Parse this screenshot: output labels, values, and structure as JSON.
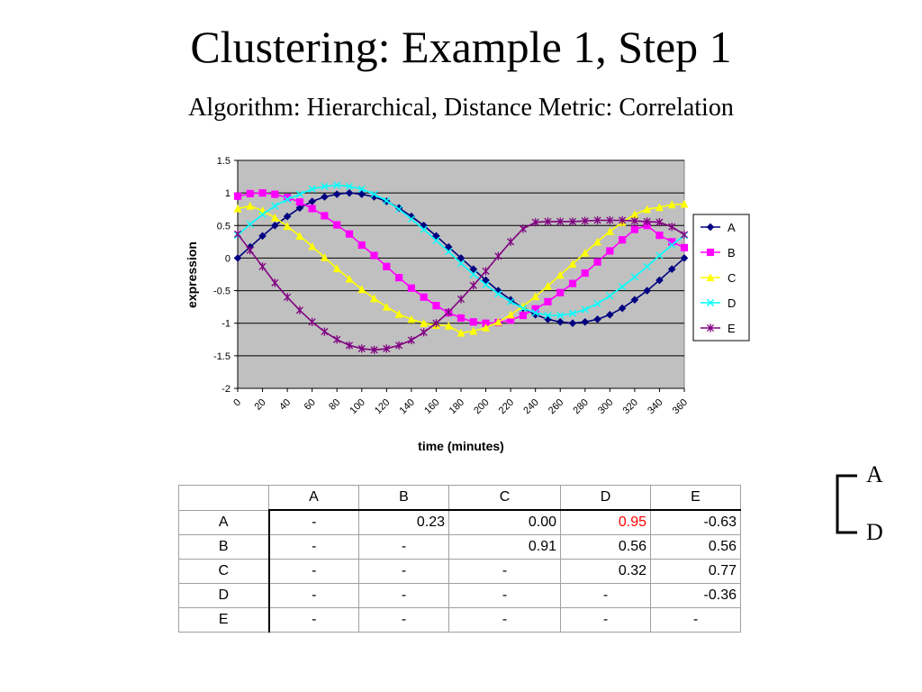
{
  "slide": {
    "title": "Clustering: Example 1, Step 1",
    "subtitle": "Algorithm: Hierarchical, Distance Metric: Correlation"
  },
  "chart_data": {
    "type": "line",
    "title": "",
    "xlabel": "time (minutes)",
    "ylabel": "expression",
    "xlim": [
      0,
      360
    ],
    "ylim": [
      -2,
      1.5
    ],
    "yticks": [
      1.5,
      1,
      0.5,
      0,
      -0.5,
      -1,
      -1.5,
      -2
    ],
    "xticks": [
      0,
      20,
      40,
      60,
      80,
      100,
      120,
      140,
      160,
      180,
      200,
      220,
      240,
      260,
      280,
      300,
      320,
      340,
      360
    ],
    "grid": "horizontal",
    "plot_background": "#c0c0c0",
    "legend_position": "right",
    "x": [
      0,
      10,
      20,
      30,
      40,
      50,
      60,
      70,
      80,
      90,
      100,
      110,
      120,
      130,
      140,
      150,
      160,
      170,
      180,
      190,
      200,
      210,
      220,
      230,
      240,
      250,
      260,
      270,
      280,
      290,
      300,
      310,
      320,
      330,
      340,
      350,
      360
    ],
    "series": [
      {
        "name": "A",
        "color": "#000080",
        "marker": "diamond",
        "values": [
          0.0,
          0.17,
          0.34,
          0.5,
          0.64,
          0.77,
          0.87,
          0.94,
          0.98,
          1.0,
          0.98,
          0.94,
          0.87,
          0.77,
          0.64,
          0.5,
          0.34,
          0.17,
          0.0,
          -0.17,
          -0.34,
          -0.5,
          -0.64,
          -0.77,
          -0.87,
          -0.94,
          -0.98,
          -1.0,
          -0.98,
          -0.94,
          -0.87,
          -0.77,
          -0.64,
          -0.5,
          -0.34,
          -0.17,
          0.0
        ]
      },
      {
        "name": "B",
        "color": "#ff00ff",
        "marker": "square",
        "values": [
          0.95,
          0.99,
          1.0,
          0.98,
          0.93,
          0.86,
          0.76,
          0.65,
          0.51,
          0.37,
          0.2,
          0.04,
          -0.13,
          -0.3,
          -0.46,
          -0.6,
          -0.73,
          -0.84,
          -0.92,
          -0.98,
          -1.0,
          -0.99,
          -0.95,
          -0.88,
          -0.78,
          -0.67,
          -0.53,
          -0.39,
          -0.23,
          -0.06,
          0.11,
          0.28,
          0.44,
          0.5,
          0.35,
          0.25,
          0.16
        ]
      },
      {
        "name": "C",
        "color": "#ffff00",
        "marker": "triangle",
        "values": [
          0.76,
          0.8,
          0.73,
          0.62,
          0.49,
          0.34,
          0.18,
          0.01,
          -0.16,
          -0.32,
          -0.48,
          -0.62,
          -0.75,
          -0.86,
          -0.94,
          -1.0,
          -1.03,
          -1.04,
          -1.15,
          -1.12,
          -1.07,
          -0.98,
          -0.87,
          -0.74,
          -0.59,
          -0.43,
          -0.26,
          -0.09,
          0.08,
          0.25,
          0.41,
          0.55,
          0.67,
          0.75,
          0.78,
          0.82,
          0.83
        ]
      },
      {
        "name": "D",
        "color": "#00ffff",
        "marker": "x",
        "values": [
          0.35,
          0.52,
          0.67,
          0.8,
          0.9,
          0.98,
          1.06,
          1.1,
          1.12,
          1.1,
          1.06,
          0.98,
          0.88,
          0.75,
          0.6,
          0.44,
          0.27,
          0.1,
          -0.08,
          -0.25,
          -0.41,
          -0.55,
          -0.67,
          -0.77,
          -0.84,
          -0.88,
          -0.88,
          -0.85,
          -0.79,
          -0.7,
          -0.58,
          -0.44,
          -0.29,
          -0.13,
          0.04,
          0.2,
          0.35
        ]
      },
      {
        "name": "E",
        "color": "#800080",
        "marker": "star",
        "values": [
          0.37,
          0.12,
          -0.13,
          -0.38,
          -0.6,
          -0.8,
          -0.98,
          -1.13,
          -1.25,
          -1.34,
          -1.39,
          -1.41,
          -1.39,
          -1.34,
          -1.26,
          -1.14,
          -1.0,
          -0.83,
          -0.63,
          -0.42,
          -0.2,
          0.03,
          0.25,
          0.45,
          0.55,
          0.56,
          0.56,
          0.56,
          0.57,
          0.58,
          0.58,
          0.58,
          0.57,
          0.56,
          0.55,
          0.48,
          0.36
        ]
      }
    ]
  },
  "matrix": {
    "corner": "",
    "columns": [
      "A",
      "B",
      "C",
      "D",
      "E"
    ],
    "rows": [
      {
        "label": "A",
        "cells": [
          "-",
          "0.23",
          "0.00",
          "0.95",
          "-0.63"
        ]
      },
      {
        "label": "B",
        "cells": [
          "-",
          "-",
          "0.91",
          "0.56",
          "0.56"
        ]
      },
      {
        "label": "C",
        "cells": [
          "-",
          "-",
          "-",
          "0.32",
          "0.77"
        ]
      },
      {
        "label": "D",
        "cells": [
          "-",
          "-",
          "-",
          "-",
          "-0.36"
        ]
      },
      {
        "label": "E",
        "cells": [
          "-",
          "-",
          "-",
          "-",
          "-"
        ]
      }
    ],
    "highlight": {
      "row": 0,
      "col": 3,
      "color": "#ff0000"
    }
  },
  "dendrogram": {
    "leaves": [
      "A",
      "D"
    ]
  }
}
